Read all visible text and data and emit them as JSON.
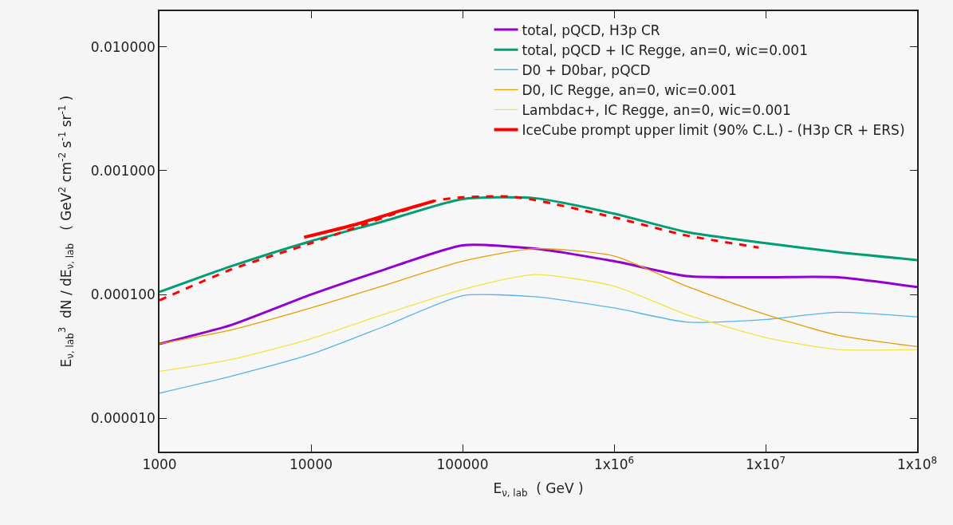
{
  "chart_data": {
    "type": "line",
    "xlabel": "E$_{ν, lab}$  ( GeV )",
    "ylabel": "E$_{ν, lab}$$^{3}$  dN / dE$_{ν, lab}$   ( GeV$^{2}$ cm$^{-2}$ s$^{-1}$ sr$^{-1}$ )",
    "log": "xy",
    "grid": false,
    "legend": "top right",
    "marker": "none",
    "xlim": [
      1000,
      100000000
    ],
    "ylim": [
      5.4e-06,
      0.0194
    ],
    "xticks": [
      1000,
      10000,
      100000,
      {
        "value": 1000000,
        "label": "1x10$^{6}$"
      },
      {
        "value": 10000000,
        "label": "1x10$^{7}$"
      },
      {
        "value": 100000000,
        "label": "1x10$^{8}$"
      }
    ],
    "yticks": [
      {
        "value": 0.01,
        "label": "0.010000"
      },
      {
        "value": 0.001,
        "label": "0.001000"
      },
      {
        "value": 0.0001,
        "label": "0.000100"
      },
      {
        "value": 1e-05,
        "label": "0.000010"
      }
    ],
    "x": [
      1000,
      3000,
      10000,
      30000,
      100000,
      300000,
      1000000,
      3000000,
      10000000,
      30000000,
      100000000
    ],
    "series": [
      {
        "name": "total, pQCD, H3p CR",
        "color": "#9400d3",
        "line_style": "solid",
        "values": [
          4e-05,
          5.7e-05,
          0.0001,
          0.000158,
          0.00025,
          0.000235,
          0.000186,
          0.000141,
          0.000138,
          0.000138,
          0.000115
        ]
      },
      {
        "name": "total, pQCD + IC Regge, an=0, wic=0.001",
        "color": "#009e73",
        "line_style": "solid",
        "values": [
          0.000105,
          0.00017,
          0.00027,
          0.00039,
          0.00059,
          0.0006,
          0.00045,
          0.00032,
          0.00026,
          0.00022,
          0.00019
        ]
      },
      {
        "name": "D0 + D0bar, pQCD",
        "color": "#56b4e9",
        "line_style": "solid",
        "values": [
          1.6e-05,
          2.2e-05,
          3.3e-05,
          5.5e-05,
          9.8e-05,
          9.6e-05,
          7.8e-05,
          6e-05,
          6.3e-05,
          7.2e-05,
          6.6e-05
        ]
      },
      {
        "name": "D0, IC Regge, an=0, wic=0.001",
        "color": "#e69f00",
        "line_style": "solid",
        "values": [
          4e-05,
          5.2e-05,
          7.8e-05,
          0.000118,
          0.000186,
          0.000235,
          0.000205,
          0.000117,
          6.9e-05,
          4.7e-05,
          3.8e-05
        ]
      },
      {
        "name": "Lambdac+, IC Regge, an=0, wic=0.001",
        "color": "#f0e442",
        "line_style": "solid",
        "values": [
          2.4e-05,
          3e-05,
          4.4e-05,
          6.9e-05,
          0.00011,
          0.000145,
          0.000117,
          6.9e-05,
          4.5e-05,
          3.6e-05,
          3.6e-05
        ]
      },
      {
        "name": "IceCube prompt upper limit (90% C.L.) - (H3p CR + ERS)",
        "color": "#ff0000",
        "line_style": "solid",
        "x": [
          9000,
          20000,
          40000,
          65000
        ],
        "values": [
          0.00029,
          0.00037,
          0.00048,
          0.00057
        ]
      },
      {
        "color": "#ff0000",
        "line_style": "dashed",
        "x": [
          1000,
          3000,
          10000,
          65000,
          100000,
          200000,
          300000,
          1000000,
          3000000,
          9000000
        ],
        "values": [
          9e-05,
          0.00016,
          0.00026,
          0.00057,
          0.00061,
          0.00062,
          0.00058,
          0.00042,
          0.0003,
          0.00024
        ]
      }
    ]
  }
}
